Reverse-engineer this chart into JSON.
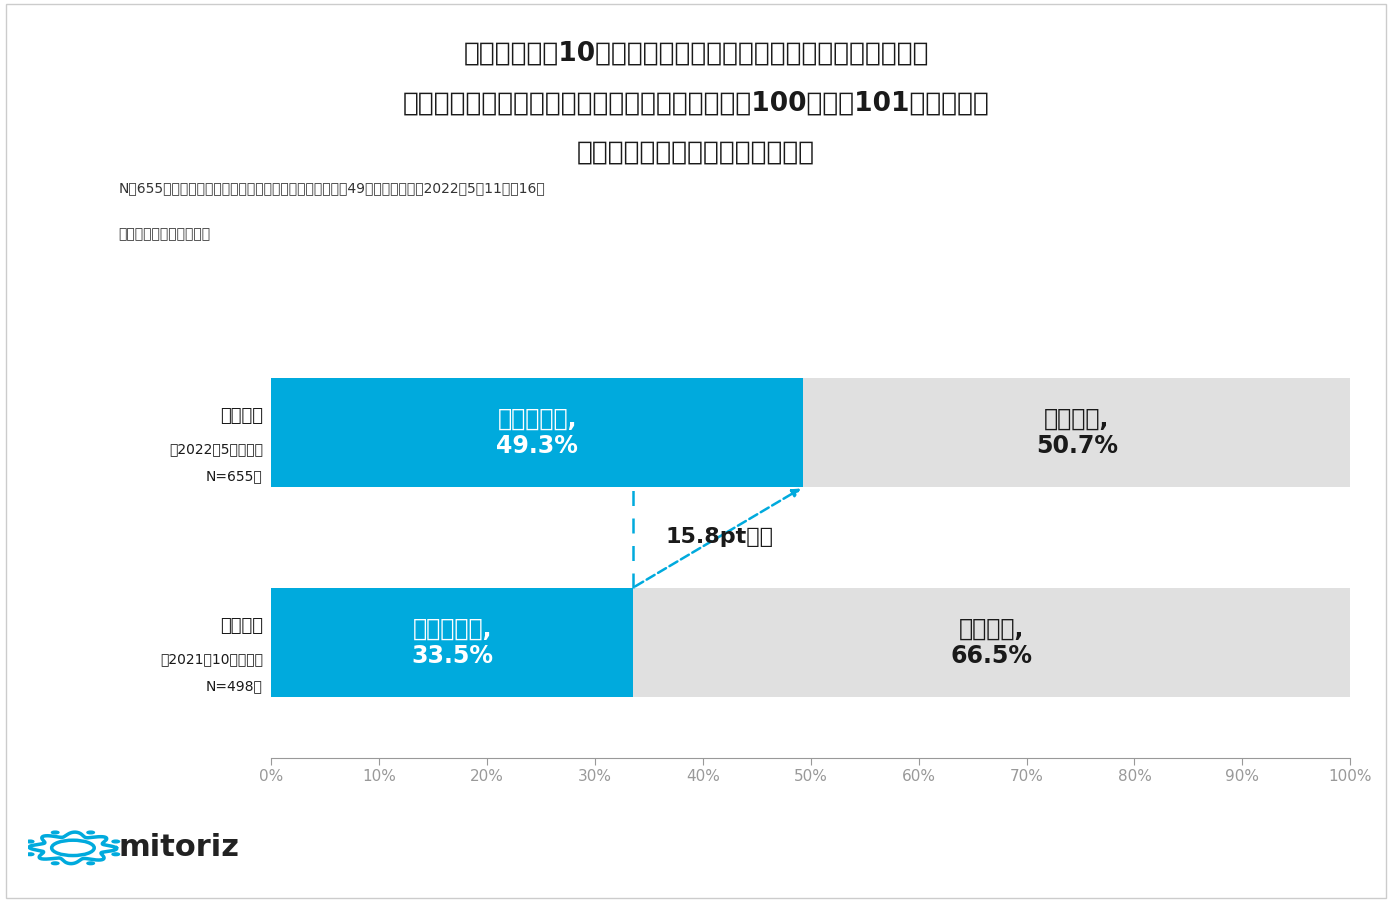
{
  "title_line1": "図表１）今年10月から社会保険の適用外だった中小企業で働く",
  "title_line2": "短時間パート労働者の社会保険加入が、従業員数100人超（101人以上）に",
  "title_line3": "拡大されることをご存知ですか？",
  "note_line1": "N＝655人、弊社に登録する非正規で働く女性（平均年齢49歳）調査期間：2022年5月11日～16日",
  "note_line2": "インターネットリサーチ",
  "bar1_label": "今回調査",
  "bar1_sublabel": "［2022年5月調査］",
  "bar1_n": "N=655人",
  "bar1_know": 49.3,
  "bar1_not_know": 50.7,
  "bar2_label": "前回調査",
  "bar2_sublabel": "［2021年10月調査］",
  "bar2_n": "N=498人",
  "bar2_know": 33.5,
  "bar2_not_know": 66.5,
  "color_know": "#00AADD",
  "color_not_know": "#E0E0E0",
  "bar_height": 0.52,
  "annotation_text": "15.8pt上昇",
  "logo_text": "mitoriz",
  "background_color": "#FFFFFF",
  "text_color_dark": "#1a1a1a",
  "title_fontsize": 19,
  "bar_label_fontsize": 17,
  "axis_label_fontsize": 12,
  "note_fontsize": 10
}
